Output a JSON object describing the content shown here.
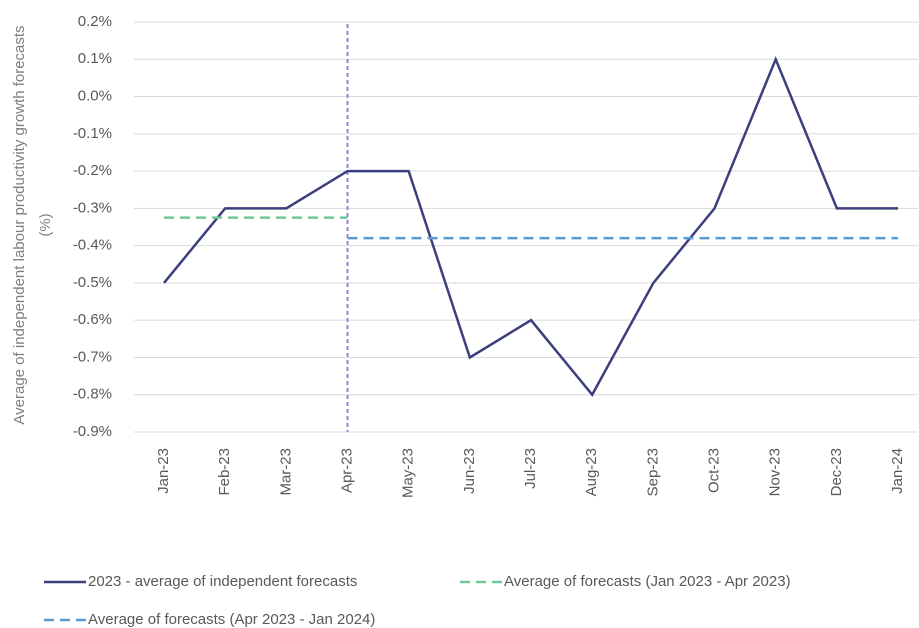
{
  "chart_data": {
    "type": "line",
    "y_label": "Average of independent labour productivity growth forecasts (%)",
    "categories": [
      "Jan-23",
      "Feb-23",
      "Mar-23",
      "Apr-23",
      "May-23",
      "Jun-23",
      "Jul-23",
      "Aug-23",
      "Sep-23",
      "Oct-23",
      "Nov-23",
      "Dec-23",
      "Jan-24"
    ],
    "series": [
      {
        "name": "2023 - average of independent forecasts",
        "color": "#3b3f7e",
        "dash": "solid",
        "values": [
          -0.5,
          -0.3,
          -0.3,
          -0.2,
          -0.2,
          -0.7,
          -0.6,
          -0.8,
          -0.5,
          -0.3,
          0.1,
          -0.3,
          -0.3
        ]
      },
      {
        "name": "Average of forecasts (Jan 2023 - Apr 2023)",
        "color": "#6dc797",
        "dash": "dashed",
        "values": [
          -0.325,
          -0.325,
          -0.325,
          -0.325,
          null,
          null,
          null,
          null,
          null,
          null,
          null,
          null,
          null
        ]
      },
      {
        "name": "Average of forecasts (Apr 2023 - Jan 2024)",
        "color": "#5b9bd5",
        "dash": "dashed",
        "values": [
          null,
          null,
          null,
          -0.38,
          -0.38,
          -0.38,
          -0.38,
          -0.38,
          -0.38,
          -0.38,
          -0.38,
          -0.38,
          -0.38
        ]
      }
    ],
    "vline_index": 3,
    "vline_color": "#9b7fd4",
    "ylim": [
      -0.9,
      0.2
    ],
    "yticks": [
      {
        "value": -0.9,
        "label": "-0.9%"
      },
      {
        "value": -0.8,
        "label": "-0.8%"
      },
      {
        "value": -0.7,
        "label": "-0.7%"
      },
      {
        "value": -0.6,
        "label": "-0.6%"
      },
      {
        "value": -0.5,
        "label": "-0.5%"
      },
      {
        "value": -0.4,
        "label": "-0.4%"
      },
      {
        "value": -0.3,
        "label": "-0.3%"
      },
      {
        "value": -0.2,
        "label": "-0.2%"
      },
      {
        "value": -0.1,
        "label": "-0.1%"
      },
      {
        "value": 0.0,
        "label": "0.0%"
      },
      {
        "value": 0.1,
        "label": "0.1%"
      },
      {
        "value": 0.2,
        "label": "0.2%"
      }
    ],
    "grid": true
  }
}
